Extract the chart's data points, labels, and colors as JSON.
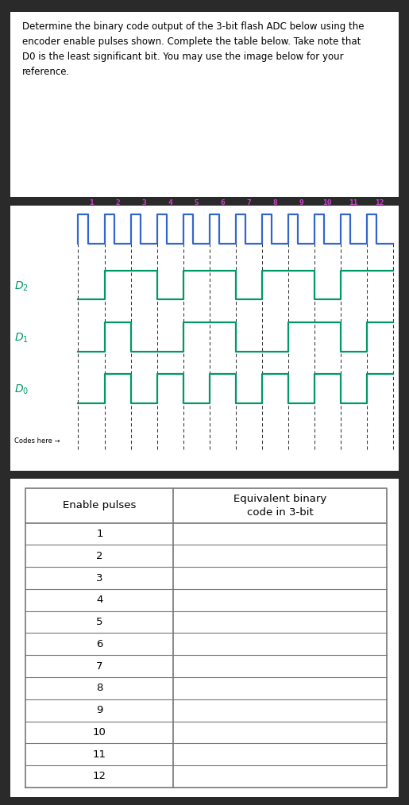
{
  "title_text": "Determine the binary code output of the 3-bit flash ADC below using the\nencoder enable pulses shown. Complete the table below. Take note that\nD0 is the least significant bit. You may use the image below for your\nreference.",
  "enable_color": "#3366cc",
  "signal_color": "#009966",
  "dashed_color": "#333333",
  "outer_bg": "#2a2a2a",
  "panel_bg": "#ffffff",
  "num_pulses": 12,
  "pulse_labels": [
    "1",
    "2",
    "3",
    "4",
    "5",
    "6",
    "7",
    "8",
    "9",
    "10",
    "11",
    "12"
  ],
  "D2_label": "D2",
  "D1_label": "D₁",
  "D0_label": "D0",
  "codes_label": "Codes here →",
  "d2_vals": [
    0,
    1,
    1,
    0,
    1,
    1,
    0,
    1,
    1,
    0,
    1,
    1
  ],
  "d1_vals": [
    0,
    1,
    0,
    0,
    1,
    1,
    0,
    0,
    1,
    1,
    0,
    1
  ],
  "d0_vals": [
    0,
    1,
    0,
    1,
    0,
    1,
    0,
    1,
    0,
    1,
    0,
    1
  ],
  "col1_header": "Enable pulses",
  "col2_header": "Equivalent binary\ncode in 3-bit",
  "table_rows": [
    "1",
    "2",
    "3",
    "4",
    "5",
    "6",
    "7",
    "8",
    "9",
    "10",
    "11",
    "12"
  ],
  "title_fontsize": 8.5,
  "label_fontsize": 9.0,
  "pulse_label_fontsize": 6.8,
  "table_header_fontsize": 9.5,
  "table_row_fontsize": 9.5
}
